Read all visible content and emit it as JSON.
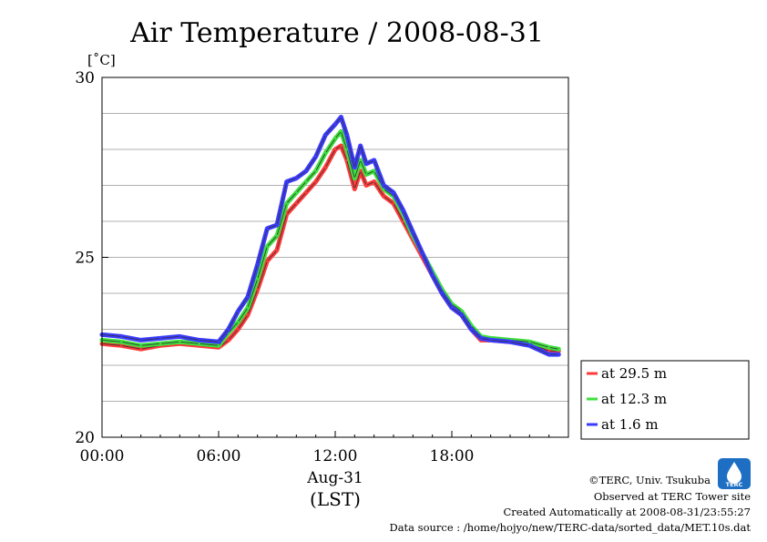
{
  "chart_data": {
    "type": "line",
    "title": "Air Temperature / 2008-08-31",
    "ylabel": "[˚C]",
    "xlabel": "(LST)",
    "date_label": "Aug-31",
    "xlim_hours": [
      0,
      24
    ],
    "ylim": [
      20,
      30
    ],
    "x_ticks": [
      {
        "hour": 0,
        "label": "00:00"
      },
      {
        "hour": 6,
        "label": "06:00"
      },
      {
        "hour": 12,
        "label": "12:00"
      },
      {
        "hour": 18,
        "label": "18:00"
      }
    ],
    "y_ticks": [
      {
        "value": 20,
        "label": "20"
      },
      {
        "value": 25,
        "label": "25"
      },
      {
        "value": 30,
        "label": "30"
      }
    ],
    "grid": true,
    "legend_position": "right",
    "series": [
      {
        "name": "at 29.5 m",
        "color": "#ff3b3b",
        "x": [
          0,
          1,
          2,
          3,
          4,
          5,
          6,
          6.5,
          7,
          7.5,
          8,
          8.5,
          9,
          9.5,
          10,
          10.5,
          11,
          11.5,
          12,
          12.3,
          12.6,
          13,
          13.3,
          13.6,
          14,
          14.5,
          15,
          15.5,
          16,
          16.5,
          17,
          17.5,
          18,
          18.5,
          19,
          19.5,
          20,
          21,
          22,
          23,
          23.5
        ],
        "y": [
          22.6,
          22.55,
          22.45,
          22.55,
          22.6,
          22.55,
          22.5,
          22.7,
          23.0,
          23.4,
          24.1,
          24.9,
          25.2,
          26.2,
          26.5,
          26.8,
          27.1,
          27.5,
          28.0,
          28.1,
          27.7,
          26.9,
          27.4,
          27.0,
          27.1,
          26.7,
          26.5,
          26.0,
          25.5,
          25.0,
          24.5,
          24.0,
          23.6,
          23.4,
          23.0,
          22.7,
          22.7,
          22.65,
          22.6,
          22.4,
          22.4
        ]
      },
      {
        "name": "at 12.3 m",
        "color": "#3ee03e",
        "x": [
          0,
          1,
          2,
          3,
          4,
          5,
          6,
          6.5,
          7,
          7.5,
          8,
          8.5,
          9,
          9.5,
          10,
          10.5,
          11,
          11.5,
          12,
          12.3,
          12.6,
          13,
          13.3,
          13.6,
          14,
          14.5,
          15,
          15.5,
          16,
          16.5,
          17,
          17.5,
          18,
          18.5,
          19,
          19.5,
          20,
          21,
          22,
          23,
          23.5
        ],
        "y": [
          22.7,
          22.65,
          22.55,
          22.6,
          22.65,
          22.6,
          22.55,
          22.9,
          23.2,
          23.6,
          24.4,
          25.3,
          25.6,
          26.5,
          26.8,
          27.1,
          27.4,
          27.9,
          28.3,
          28.5,
          28.0,
          27.2,
          27.7,
          27.3,
          27.4,
          26.9,
          26.7,
          26.2,
          25.6,
          25.1,
          24.6,
          24.1,
          23.7,
          23.5,
          23.1,
          22.8,
          22.75,
          22.7,
          22.65,
          22.5,
          22.45
        ]
      },
      {
        "name": "at 1.6 m",
        "color": "#3b3bff",
        "x": [
          0,
          1,
          2,
          3,
          4,
          5,
          6,
          6.5,
          7,
          7.5,
          8,
          8.5,
          9,
          9.5,
          10,
          10.5,
          11,
          11.5,
          12,
          12.3,
          12.6,
          13,
          13.3,
          13.6,
          14,
          14.5,
          15,
          15.5,
          16,
          16.5,
          17,
          17.5,
          18,
          18.5,
          19,
          19.5,
          20,
          21,
          22,
          23,
          23.5
        ],
        "y": [
          22.85,
          22.8,
          22.7,
          22.75,
          22.8,
          22.7,
          22.65,
          23.0,
          23.5,
          23.9,
          24.8,
          25.8,
          25.9,
          27.1,
          27.2,
          27.4,
          27.8,
          28.4,
          28.7,
          28.9,
          28.4,
          27.5,
          28.1,
          27.6,
          27.7,
          27.0,
          26.8,
          26.3,
          25.7,
          25.1,
          24.5,
          24.0,
          23.6,
          23.4,
          23.0,
          22.75,
          22.7,
          22.65,
          22.55,
          22.3,
          22.3
        ]
      }
    ]
  },
  "footer": {
    "copyright": "©TERC, Univ. Tsukuba",
    "observed": "Observed at TERC Tower site",
    "created": "Created Automatically at 2008-08-31/23:55:27",
    "source": "Data source : /home/hojyo/new/TERC-data/sorted_data/MET.10s.dat",
    "logo_text": "TERC"
  }
}
